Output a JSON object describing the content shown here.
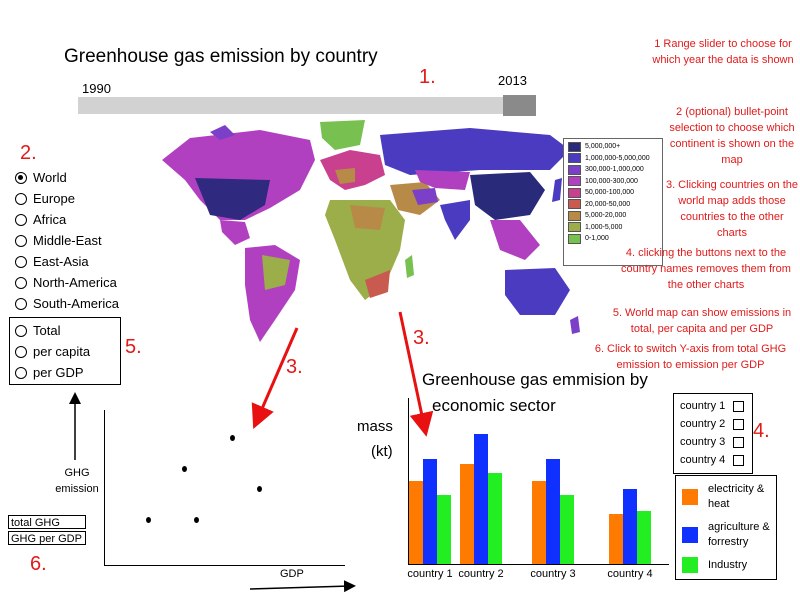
{
  "map_title": "Greenhouse gas emission by country",
  "slider": {
    "start_year": "1990",
    "end_year": "2013"
  },
  "markers": {
    "m1": "1.",
    "m2": "2.",
    "m3a": "3.",
    "m3b": "3.",
    "m4": "4.",
    "m5": "5.",
    "m6": "6."
  },
  "notes": [
    "1 Range slider to choose for which year the data is shown",
    "2 (optional) bullet-point selection to choose which continent is shown on the map",
    "3. Clicking countries on the world map adds those countries to the other charts",
    "4. clicking the buttons next to the country names removes them from the other charts",
    "5. World map can show emissions in total, per capita and per GDP",
    "6. Click to switch Y-axis from total GHG emission to emission per GDP"
  ],
  "map_legend": [
    {
      "label": "5,000,000+",
      "color": "#2a2a7a"
    },
    {
      "label": "1,000,000-5,000,000",
      "color": "#4b3bc0"
    },
    {
      "label": "300,000-1,000,000",
      "color": "#7b3fc8"
    },
    {
      "label": "100,000-300,000",
      "color": "#b040c0"
    },
    {
      "label": "50,000-100,000",
      "color": "#c8408e"
    },
    {
      "label": "20,000-50,000",
      "color": "#c85a50"
    },
    {
      "label": "5,000-20,000",
      "color": "#b88a48"
    },
    {
      "label": "1,000-5,000",
      "color": "#9cae4a"
    },
    {
      "label": "0-1,000",
      "color": "#78c050"
    }
  ],
  "continents": {
    "selected": "World",
    "options": [
      "World",
      "Europe",
      "Africa",
      "Middle-East",
      "East-Asia",
      "North-America",
      "South-America"
    ]
  },
  "measures": [
    "Total",
    "per capita",
    "per GDP"
  ],
  "toggle": {
    "total": "total GHG",
    "per_gdp": "GHG per GDP"
  },
  "scatter": {
    "ylabel": "GHG emission",
    "xlabel": "GDP",
    "points": [
      {
        "x": 0.53,
        "y": 0.82
      },
      {
        "x": 0.33,
        "y": 0.62
      },
      {
        "x": 0.64,
        "y": 0.49
      },
      {
        "x": 0.18,
        "y": 0.29
      },
      {
        "x": 0.38,
        "y": 0.29
      }
    ]
  },
  "bar_title_line1": "Greenhouse gas emmision by",
  "bar_title_line2": "economic sector",
  "bar_ylabel_1": "mass",
  "bar_ylabel_2": "(kt)",
  "country_list": [
    "country 1",
    "country 2",
    "country 3",
    "country 4"
  ],
  "chart_data": {
    "type": "bar",
    "categories": [
      "country 1",
      "country 2",
      "country 3",
      "country 4"
    ],
    "series": [
      {
        "name": "electricity & heat",
        "color": "#ff7a00",
        "values": [
          3.0,
          3.6,
          3.0,
          1.8
        ]
      },
      {
        "name": "agriculture & forrestry",
        "color": "#1030ff",
        "values": [
          3.8,
          4.7,
          3.8,
          2.7
        ]
      },
      {
        "name": "Industry",
        "color": "#22ee22",
        "values": [
          2.5,
          3.3,
          2.5,
          1.9
        ]
      }
    ],
    "title": "Greenhouse gas emmision by economic sector",
    "ylabel": "mass (kt)",
    "ylim": [
      0,
      6
    ]
  }
}
